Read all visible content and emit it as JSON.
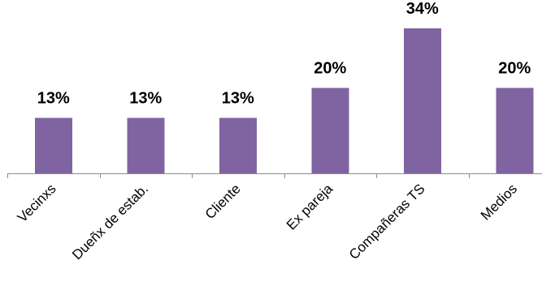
{
  "chart_data": {
    "type": "bar",
    "categories": [
      "Vecinxs",
      "Dueñx de estab.",
      "Cliente",
      "Ex pareja",
      "Compañeras TS",
      "Medios"
    ],
    "values": [
      13,
      13,
      13,
      20,
      34,
      20
    ],
    "data_labels": [
      "13%",
      "13%",
      "13%",
      "20%",
      "34%",
      "20%"
    ],
    "value_unit": "%",
    "title": "",
    "xlabel": "",
    "ylabel": "",
    "ylim": [
      0,
      34
    ],
    "grid": false,
    "legend": "none",
    "bar_color": "#8064A2",
    "axis_color": "#8c8c8c"
  }
}
